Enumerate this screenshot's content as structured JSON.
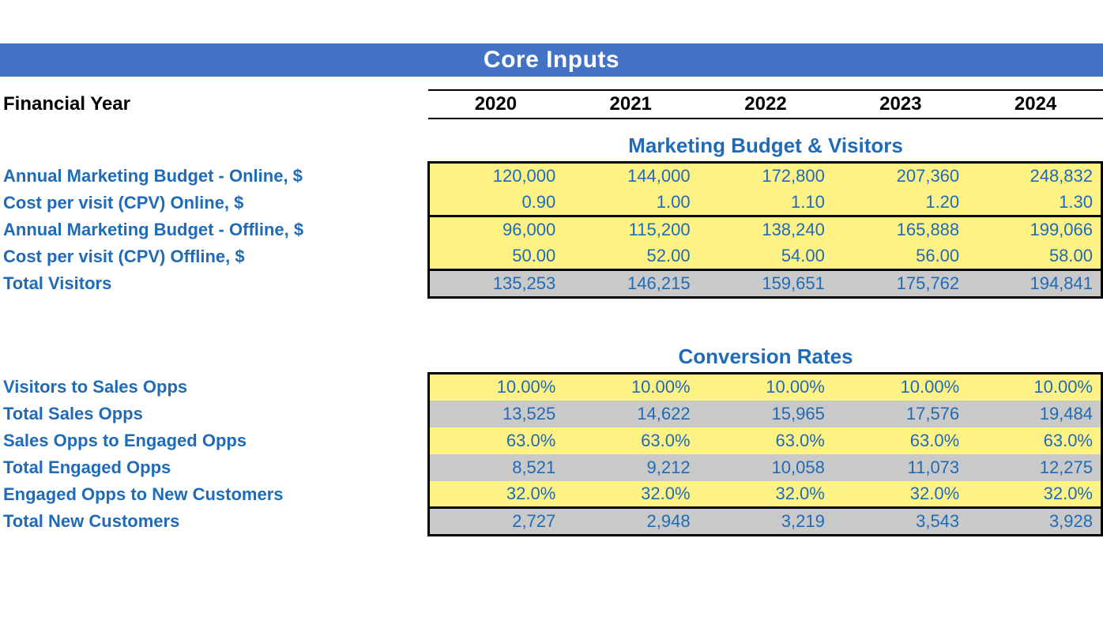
{
  "title": "Core Inputs",
  "header_label": "Financial Year",
  "years": [
    "2020",
    "2021",
    "2022",
    "2023",
    "2024"
  ],
  "colors": {
    "title_bg": "#4472c4",
    "title_text": "#ffffff",
    "accent_text": "#1f6bb8",
    "input_bg": "#fff285",
    "total_bg": "#c9c9c9",
    "border": "#000000"
  },
  "section1": {
    "title": "Marketing Budget & Visitors",
    "rows": [
      {
        "label": "Annual Marketing Budget - Online, $",
        "bg": "yellow",
        "bold": false,
        "values": [
          "120,000",
          "144,000",
          "172,800",
          "207,360",
          "248,832"
        ]
      },
      {
        "label": "Cost per visit (CPV) Online, $",
        "bg": "yellow",
        "bold": false,
        "values": [
          "0.90",
          "1.00",
          "1.10",
          "1.20",
          "1.30"
        ],
        "sep_after": true
      },
      {
        "label": "Annual Marketing Budget - Offline, $",
        "bg": "yellow",
        "bold": false,
        "values": [
          "96,000",
          "115,200",
          "138,240",
          "165,888",
          "199,066"
        ]
      },
      {
        "label": "Cost per visit (CPV) Offline, $",
        "bg": "yellow",
        "bold": false,
        "values": [
          "50.00",
          "52.00",
          "54.00",
          "56.00",
          "58.00"
        ],
        "sep_after": true
      },
      {
        "label": "Total Visitors",
        "bg": "gray",
        "bold": true,
        "values": [
          "135,253",
          "146,215",
          "159,651",
          "175,762",
          "194,841"
        ]
      }
    ]
  },
  "section2": {
    "title": "Conversion Rates",
    "rows": [
      {
        "label": "Visitors to Sales Opps",
        "bg": "yellow",
        "bold": false,
        "values": [
          "10.00%",
          "10.00%",
          "10.00%",
          "10.00%",
          "10.00%"
        ]
      },
      {
        "label": "Total Sales Opps",
        "bg": "gray",
        "bold": true,
        "values": [
          "13,525",
          "14,622",
          "15,965",
          "17,576",
          "19,484"
        ]
      },
      {
        "label": "Sales Opps to Engaged Opps",
        "bg": "yellow",
        "bold": false,
        "values": [
          "63.0%",
          "63.0%",
          "63.0%",
          "63.0%",
          "63.0%"
        ]
      },
      {
        "label": "Total Engaged Opps",
        "bg": "gray",
        "bold": true,
        "values": [
          "8,521",
          "9,212",
          "10,058",
          "11,073",
          "12,275"
        ]
      },
      {
        "label": "Engaged Opps to New Customers",
        "bg": "yellow",
        "bold": false,
        "values": [
          "32.0%",
          "32.0%",
          "32.0%",
          "32.0%",
          "32.0%"
        ],
        "sep_after": true
      },
      {
        "label": "Total New Customers",
        "bg": "gray",
        "bold": true,
        "values": [
          "2,727",
          "2,948",
          "3,219",
          "3,543",
          "3,928"
        ]
      }
    ]
  }
}
